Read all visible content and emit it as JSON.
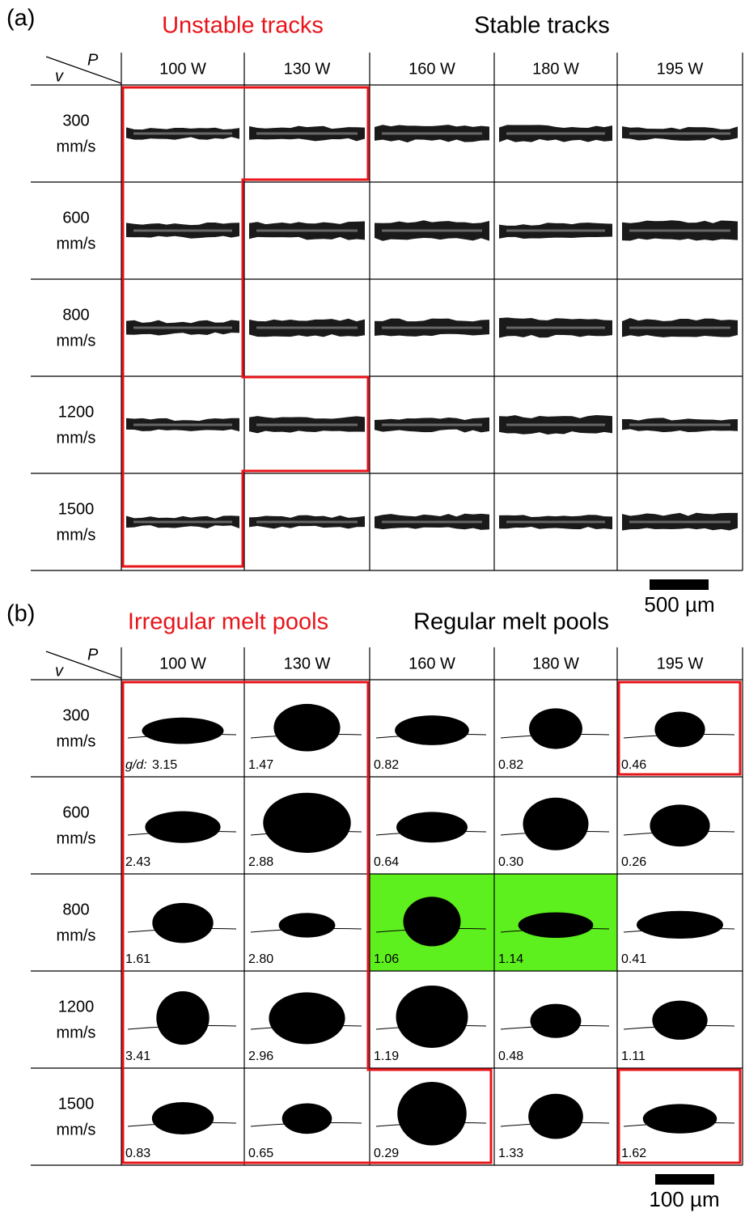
{
  "panel_a": {
    "label": "(a)",
    "headers": [
      "Unstable tracks",
      "Stable tracks"
    ],
    "corner": {
      "p": "P",
      "v": "v"
    },
    "columns": [
      "100 W",
      "130 W",
      "160 W",
      "180 W",
      "195 W"
    ],
    "rows": [
      [
        "300",
        "mm/s"
      ],
      [
        "600",
        "mm/s"
      ],
      [
        "800",
        "mm/s"
      ],
      [
        "1200",
        "mm/s"
      ],
      [
        "1500",
        "mm/s"
      ]
    ],
    "scale_bar": "500 µm"
  },
  "panel_b": {
    "label": "(b)",
    "headers": [
      "Irregular melt pools",
      "Regular melt pools"
    ],
    "corner": {
      "p": "P",
      "v": "v"
    },
    "columns": [
      "100 W",
      "130 W",
      "160 W",
      "180 W",
      "195 W"
    ],
    "rows": [
      [
        "300",
        "mm/s"
      ],
      [
        "600",
        "mm/s"
      ],
      [
        "800",
        "mm/s"
      ],
      [
        "1200",
        "mm/s"
      ],
      [
        "1500",
        "mm/s"
      ]
    ],
    "gd_label": "g/d:",
    "gd": [
      [
        "3.15",
        "1.47",
        "0.82",
        "0.82",
        "0.46"
      ],
      [
        "2.43",
        "2.88",
        "0.64",
        "0.30",
        "0.26"
      ],
      [
        "1.61",
        "2.80",
        "1.06",
        "1.14",
        "0.41"
      ],
      [
        "3.41",
        "2.96",
        "1.19",
        "0.48",
        "1.11"
      ],
      [
        "0.83",
        "0.65",
        "0.29",
        "1.33",
        "1.62"
      ]
    ],
    "scale_bar": "100 µm"
  }
}
